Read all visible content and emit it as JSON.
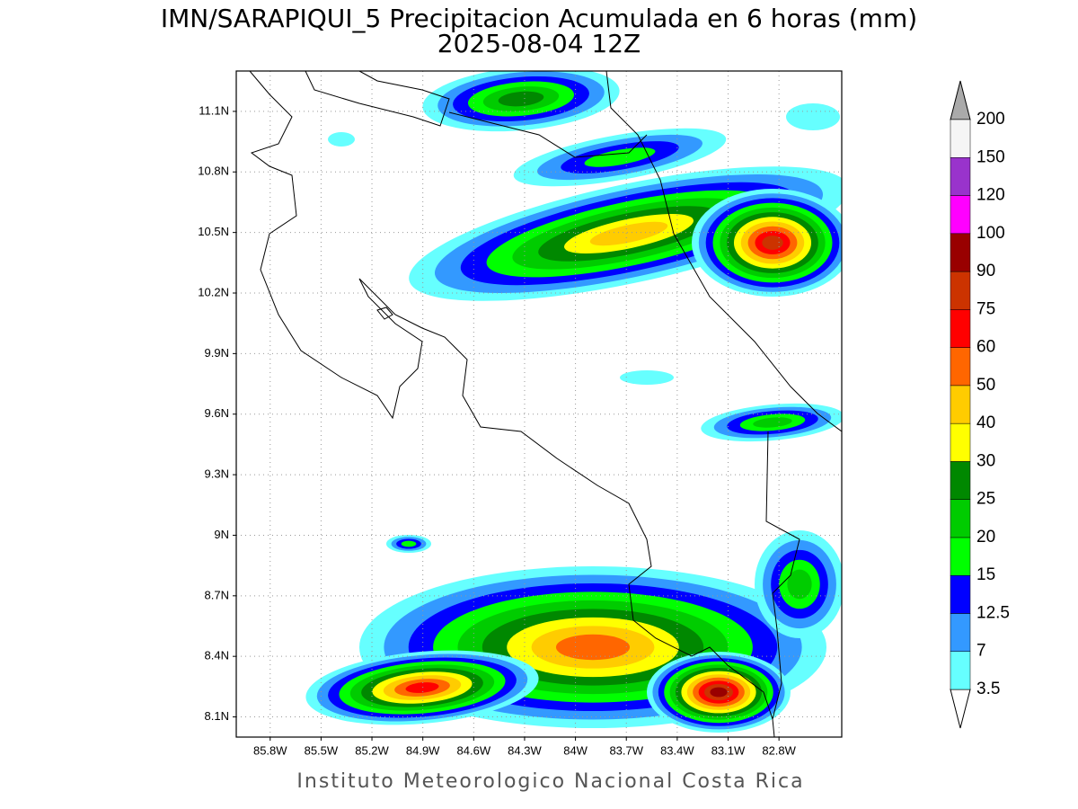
{
  "title": "IMN/SARAPIQUI_5 Precipitacion Acumulada en 6 horas (mm)",
  "subtitle": "2025-08-04 12Z",
  "map": {
    "lon_range": [
      -86.0,
      -82.43
    ],
    "lat_range": [
      8.0,
      11.3
    ],
    "grid": true,
    "lon_ticks": [
      {
        "value": -85.8,
        "label": "85.8W"
      },
      {
        "value": -85.5,
        "label": "85.5W"
      },
      {
        "value": -85.2,
        "label": "85.2W"
      },
      {
        "value": -84.9,
        "label": "84.9W"
      },
      {
        "value": -84.6,
        "label": "84.6W"
      },
      {
        "value": -84.3,
        "label": "84.3W"
      },
      {
        "value": -84,
        "label": "84W"
      },
      {
        "value": -83.7,
        "label": "83.7W"
      },
      {
        "value": -83.4,
        "label": "83.4W"
      },
      {
        "value": -83.1,
        "label": "83.1W"
      },
      {
        "value": -82.8,
        "label": "82.8W"
      }
    ],
    "lat_ticks": [
      {
        "value": 11.1,
        "label": "11.1N"
      },
      {
        "value": 10.8,
        "label": "10.8N"
      },
      {
        "value": 10.5,
        "label": "10.5N"
      },
      {
        "value": 10.2,
        "label": "10.2N"
      },
      {
        "value": 9.9,
        "label": "9.9N"
      },
      {
        "value": 9.6,
        "label": "9.6N"
      },
      {
        "value": 9.3,
        "label": "9.3N"
      },
      {
        "value": 9,
        "label": "9N"
      },
      {
        "value": 8.7,
        "label": "8.7N"
      },
      {
        "value": 8.4,
        "label": "8.4N"
      },
      {
        "value": 8.1,
        "label": "8.1N"
      }
    ]
  },
  "colorbar": {
    "levels": [
      3.5,
      7,
      12.5,
      15,
      20,
      25,
      30,
      40,
      50,
      60,
      75,
      90,
      100,
      120,
      150,
      200
    ],
    "colors": [
      "#ffffff",
      "#66ffff",
      "#3399ff",
      "#0000ff",
      "#00ff00",
      "#00cc00",
      "#008800",
      "#ffff00",
      "#ffcc00",
      "#ff6600",
      "#ff0000",
      "#cc3300",
      "#990000",
      "#ff00ff",
      "#9933cc",
      "#f5f5f5",
      "#aaaaaa"
    ]
  },
  "credit": "Instituto Meteorologico Nacional Costa Rica"
}
